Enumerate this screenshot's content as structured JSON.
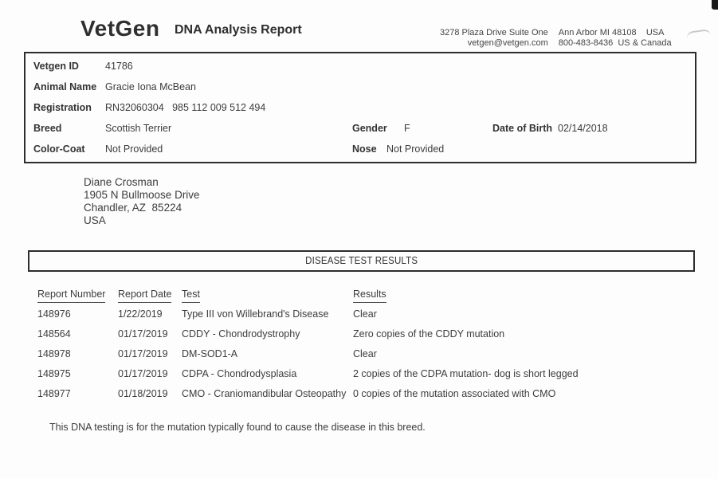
{
  "header": {
    "brand": "VetGen",
    "title": "DNA Analysis Report",
    "address_col1_line1": "3278 Plaza Drive Suite One",
    "address_col1_line2": "vetgen@vetgen.com",
    "address_col2_line1": "Ann Arbor MI 48108    USA",
    "address_col2_line2": "800-483-8436  US & Canada"
  },
  "info": {
    "rows": [
      {
        "label": "Vetgen ID",
        "value": "41786"
      },
      {
        "label": "Animal Name",
        "value": "Gracie Iona McBean"
      },
      {
        "label": "Registration",
        "value": "RN32060304   985 112 009 512 494"
      },
      {
        "label": "Breed",
        "value": "Scottish Terrier"
      },
      {
        "label": "Color-Coat",
        "value": "Not Provided"
      }
    ],
    "gender_label": "Gender",
    "gender_value": "F",
    "dob_label": "Date of Birth",
    "dob_value": "02/14/2018",
    "nose_label": "Nose",
    "nose_value": "Not Provided"
  },
  "owner": {
    "line1": "Diane Crosman",
    "line2": "1905 N Bullmoose Drive",
    "line3": "Chandler, AZ  85224",
    "line4": "USA"
  },
  "results": {
    "section_title": "DISEASE TEST RESULTS",
    "columns": [
      "Report Number",
      "Report Date",
      "Test",
      "Results"
    ],
    "rows": [
      [
        "148976",
        "1/22/2019",
        "Type III von Willebrand's Disease",
        "Clear"
      ],
      [
        "148564",
        "01/17/2019",
        "CDDY - Chondrodystrophy",
        "Zero copies of the CDDY mutation"
      ],
      [
        "148978",
        "01/17/2019",
        "DM-SOD1-A",
        "Clear"
      ],
      [
        "148975",
        "01/17/2019",
        "CDPA - Chondrodysplasia",
        "2 copies of the CDPA mutation- dog is short legged"
      ],
      [
        "148977",
        "01/18/2019",
        "CMO - Craniomandibular Osteopathy",
        "0 copies of the mutation associated with CMO"
      ]
    ],
    "footnote": "This DNA testing is for the mutation typically found to cause the disease in this breed."
  },
  "colors": {
    "ink": "#3c3c3c",
    "border": "#2d2d2d",
    "paper": "#fdfdfd"
  }
}
